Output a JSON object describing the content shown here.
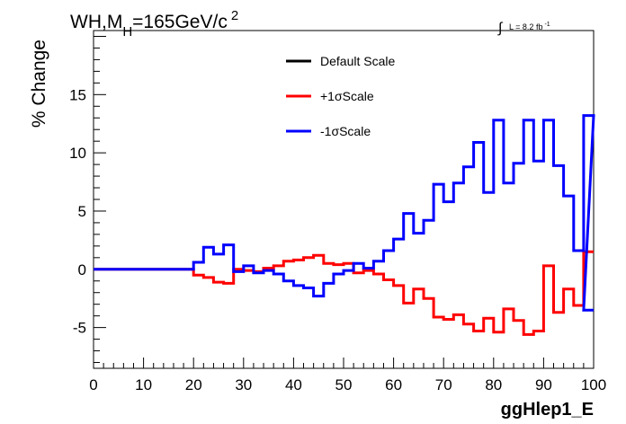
{
  "title": {
    "main": "WH,M",
    "sub": "H",
    "rest": "=165GeV/c",
    "sup": "2"
  },
  "lumi": {
    "integral": "∫",
    "text": "L = 8.2 fb",
    "sup": "-1"
  },
  "chart_data": {
    "type": "line",
    "step": true,
    "title": "",
    "xlabel": "ggHlep1_E",
    "ylabel": "% Change",
    "xlim": [
      0,
      100
    ],
    "ylim": [
      -8.5,
      20.5
    ],
    "xticks": [
      0,
      10,
      20,
      30,
      40,
      50,
      60,
      70,
      80,
      90,
      100
    ],
    "yticks": [
      -5,
      0,
      5,
      10,
      15
    ],
    "xtick_labels": [
      "0",
      "10",
      "20",
      "30",
      "40",
      "50",
      "60",
      "70",
      "80",
      "90",
      "100"
    ],
    "ytick_labels": [
      "-5",
      "0",
      "5",
      "10",
      "15"
    ],
    "grid": false,
    "legend_position": "top-center",
    "bin_edges": [
      0,
      2,
      4,
      6,
      8,
      10,
      12,
      14,
      16,
      18,
      20,
      22,
      24,
      26,
      28,
      30,
      32,
      34,
      36,
      38,
      40,
      42,
      44,
      46,
      48,
      50,
      52,
      54,
      56,
      58,
      60,
      62,
      64,
      66,
      68,
      70,
      72,
      74,
      76,
      78,
      80,
      82,
      84,
      86,
      88,
      90,
      92,
      94,
      96,
      98,
      100
    ],
    "series": [
      {
        "name": "Default Scale",
        "color": "#000000",
        "legend_only": true,
        "values": []
      },
      {
        "name": "+1σScale",
        "color": "#ff0000",
        "values": [
          0,
          0,
          0,
          0,
          0,
          0,
          0,
          0,
          0,
          0,
          -0.5,
          -0.7,
          -1.1,
          -1.2,
          0,
          -0.1,
          -0.2,
          0.1,
          0.3,
          0.7,
          0.8,
          1.0,
          1.2,
          0.5,
          0.4,
          0.5,
          -0.3,
          -0.1,
          -0.4,
          -0.9,
          -1.4,
          -2.9,
          -1.7,
          -2.5,
          -4.1,
          -4.3,
          -3.9,
          -4.7,
          -5.3,
          -4.2,
          -5.4,
          -3.4,
          -4.4,
          -5.6,
          -5.3,
          0.3,
          -3.7,
          -1.7,
          -3.1,
          1.5
        ],
        "x_end": 100
      },
      {
        "name": "-1σScale",
        "color": "#0000ff",
        "values": [
          0,
          0,
          0,
          0,
          0,
          0,
          0,
          0,
          0,
          0,
          0.6,
          1.9,
          1.3,
          2.1,
          -0.2,
          0.3,
          -0.3,
          -0.1,
          -0.4,
          -1.0,
          -1.4,
          -1.6,
          -2.3,
          -1.2,
          -0.4,
          -0.1,
          0.5,
          0.1,
          0.7,
          1.6,
          2.6,
          4.8,
          3.1,
          4.2,
          7.3,
          5.8,
          7.4,
          8.8,
          10.9,
          6.6,
          12.8,
          7.4,
          9.1,
          12.8,
          9.3,
          12.8,
          8.9,
          6.3,
          1.6,
          13.2
        ],
        "tail": [
          {
            "x": 98,
            "y": -3.5
          },
          {
            "x": 100,
            "y": -3.5
          }
        ]
      }
    ]
  }
}
